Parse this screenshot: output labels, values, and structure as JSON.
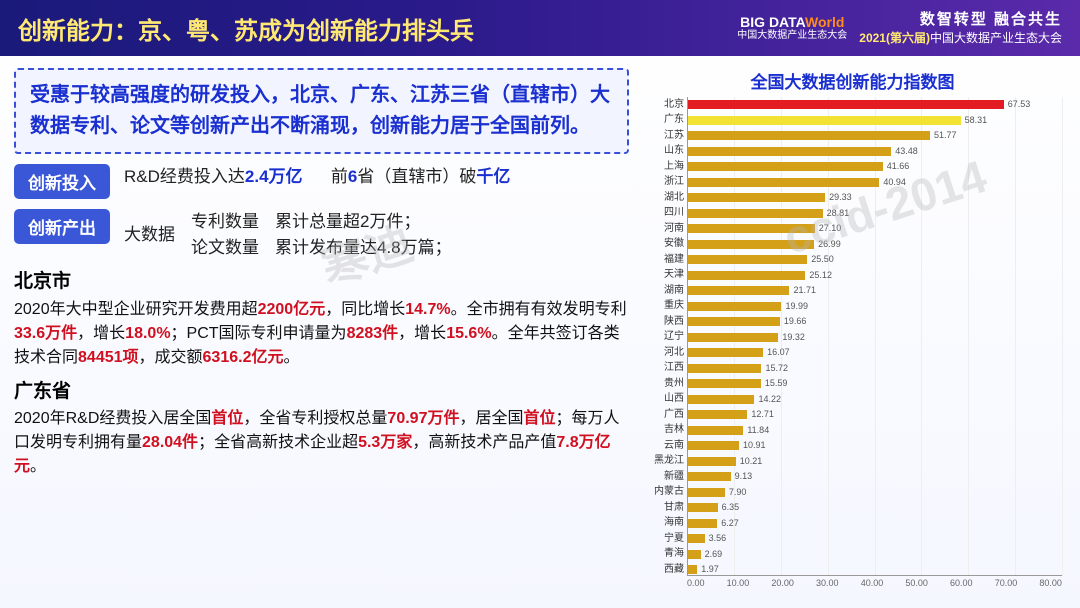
{
  "header": {
    "title": "创新能力：京、粤、苏成为创新能力排头兵",
    "logo_top": "BIG DATA",
    "logo_world": "World",
    "logo_sub": "中国大数据产业生态大会",
    "right_line1": "数智转型  融合共生",
    "right_line2_pre": "2021(第六届)",
    "right_line2_post": "中国大数据产业生态大会"
  },
  "summary": "受惠于较高强度的研发投入，北京、广东、江苏三省（直辖市）大数据专利、论文等创新产出不断涌现，创新能力居于全国前列。",
  "row_input": {
    "badge": "创新投入",
    "t1a": "R&D经费投入达",
    "t1b": "2.4万亿",
    "t2a": "前",
    "t2b": "6",
    "t2c": "省（直辖市）破",
    "t2d": "千亿"
  },
  "row_output": {
    "badge": "创新产出",
    "lead": "大数据",
    "c1a": "专利数量",
    "c1b": "论文数量",
    "c2a": "累计总量超2万件；",
    "c2b": "累计发布量达4.8万篇；"
  },
  "beijing": {
    "title": "北京市",
    "p1a": "2020年大中型企业研究开发费用超",
    "p1b": "2200亿元",
    "p1c": "，同比增长",
    "p1d": "14.7%",
    "p1e": "。全市拥有有效发明专利",
    "p1f": "33.6万件",
    "p1g": "，增长",
    "p1h": "18.0%",
    "p1i": "；PCT国际专利申请量为",
    "p1j": "8283件",
    "p1k": "，增长",
    "p1l": "15.6%",
    "p1m": "。全年共签订各类技术合同",
    "p1n": "84451项",
    "p1o": "，成交额",
    "p1p": "6316.2亿元",
    "p1q": "。"
  },
  "guangdong": {
    "title": "广东省",
    "p1a": "2020年R&D经费投入居全国",
    "p1b": "首位",
    "p1c": "，全省专利授权总量",
    "p1d": "70.97万件",
    "p1e": "，居全国",
    "p1f": "首位",
    "p1g": "；每万人口发明专利拥有量",
    "p1h": "28.04件",
    "p1i": "；全省高新技术企业超",
    "p1j": "5.3万家",
    "p1k": "，高新技术产品产值",
    "p1l": "7.8万亿元",
    "p1m": "。"
  },
  "chart": {
    "title": "全国大数据创新能力指数图",
    "type": "bar-horizontal",
    "xmax": 80,
    "xticks": [
      "0.00",
      "10.00",
      "20.00",
      "30.00",
      "40.00",
      "50.00",
      "60.00",
      "70.00",
      "80.00"
    ],
    "default_color": "#d4a017",
    "background": "#ffffff",
    "grid_color": "#eeeeee",
    "label_fontsize": 10,
    "value_fontsize": 9,
    "bars": [
      {
        "label": "北京",
        "value": 67.53,
        "color": "#e31b23"
      },
      {
        "label": "广东",
        "value": 58.31,
        "color": "#f2e233"
      },
      {
        "label": "江苏",
        "value": 51.77,
        "color": "#d4a017"
      },
      {
        "label": "山东",
        "value": 43.48,
        "color": "#d4a017"
      },
      {
        "label": "上海",
        "value": 41.66,
        "color": "#d4a017"
      },
      {
        "label": "浙江",
        "value": 40.94,
        "color": "#d4a017"
      },
      {
        "label": "湖北",
        "value": 29.33,
        "color": "#d4a017"
      },
      {
        "label": "四川",
        "value": 28.81,
        "color": "#d4a017"
      },
      {
        "label": "河南",
        "value": 27.1,
        "color": "#d4a017"
      },
      {
        "label": "安徽",
        "value": 26.99,
        "color": "#d4a017"
      },
      {
        "label": "福建",
        "value": 25.5,
        "color": "#d4a017"
      },
      {
        "label": "天津",
        "value": 25.12,
        "color": "#d4a017"
      },
      {
        "label": "湖南",
        "value": 21.71,
        "color": "#d4a017"
      },
      {
        "label": "重庆",
        "value": 19.99,
        "color": "#d4a017"
      },
      {
        "label": "陕西",
        "value": 19.66,
        "color": "#d4a017"
      },
      {
        "label": "辽宁",
        "value": 19.32,
        "color": "#d4a017"
      },
      {
        "label": "河北",
        "value": 16.07,
        "color": "#d4a017"
      },
      {
        "label": "江西",
        "value": 15.72,
        "color": "#d4a017"
      },
      {
        "label": "贵州",
        "value": 15.59,
        "color": "#d4a017"
      },
      {
        "label": "山西",
        "value": 14.22,
        "color": "#d4a017"
      },
      {
        "label": "广西",
        "value": 12.71,
        "color": "#d4a017"
      },
      {
        "label": "吉林",
        "value": 11.84,
        "color": "#d4a017"
      },
      {
        "label": "云南",
        "value": 10.91,
        "color": "#d4a017"
      },
      {
        "label": "黑龙江",
        "value": 10.21,
        "color": "#d4a017"
      },
      {
        "label": "新疆",
        "value": 9.13,
        "color": "#d4a017"
      },
      {
        "label": "内蒙古",
        "value": 7.9,
        "color": "#d4a017"
      },
      {
        "label": "甘肃",
        "value": 6.35,
        "color": "#d4a017"
      },
      {
        "label": "海南",
        "value": 6.27,
        "color": "#d4a017"
      },
      {
        "label": "宁夏",
        "value": 3.56,
        "color": "#d4a017"
      },
      {
        "label": "青海",
        "value": 2.69,
        "color": "#d4a017"
      },
      {
        "label": "西藏",
        "value": 1.97,
        "color": "#d4a017"
      }
    ]
  },
  "watermarks": [
    "ccid-2014",
    "寒迪"
  ]
}
